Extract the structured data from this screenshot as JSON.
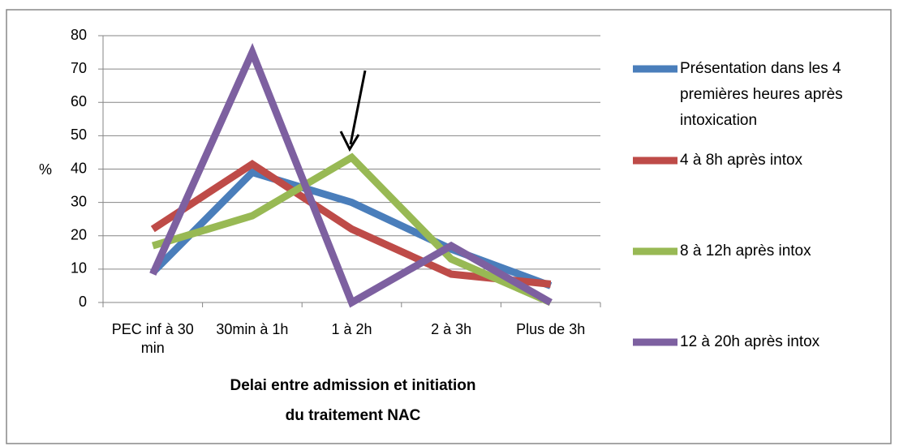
{
  "chart_data": {
    "type": "line",
    "categories": [
      "PEC inf à 30 min",
      "30min à 1h",
      "1 à 2h",
      "2 à 3h",
      "Plus de 3h"
    ],
    "series": [
      {
        "name": "Présentation dans les 4 premières heures après intoxication",
        "color": "#4a7ebb",
        "values": [
          9,
          39,
          30,
          16,
          5
        ]
      },
      {
        "name": "4 à 8h après intox",
        "color": "#be4b48",
        "values": [
          22,
          41.5,
          22,
          8.5,
          5.5
        ]
      },
      {
        "name": "8 à 12h après intox",
        "color": "#98b954",
        "values": [
          17,
          26,
          43.5,
          13,
          0
        ]
      },
      {
        "name": "12 à 20h après intox",
        "color": "#7d60a0",
        "values": [
          8.5,
          75,
          0,
          17,
          0
        ]
      }
    ],
    "ylabel": "%",
    "xlabel": "Delai entre admission et initiation du traitement NAC",
    "ylim": [
      0,
      80
    ],
    "yticks": [
      0,
      10,
      20,
      30,
      40,
      50,
      60,
      70,
      80
    ],
    "grid": true
  }
}
